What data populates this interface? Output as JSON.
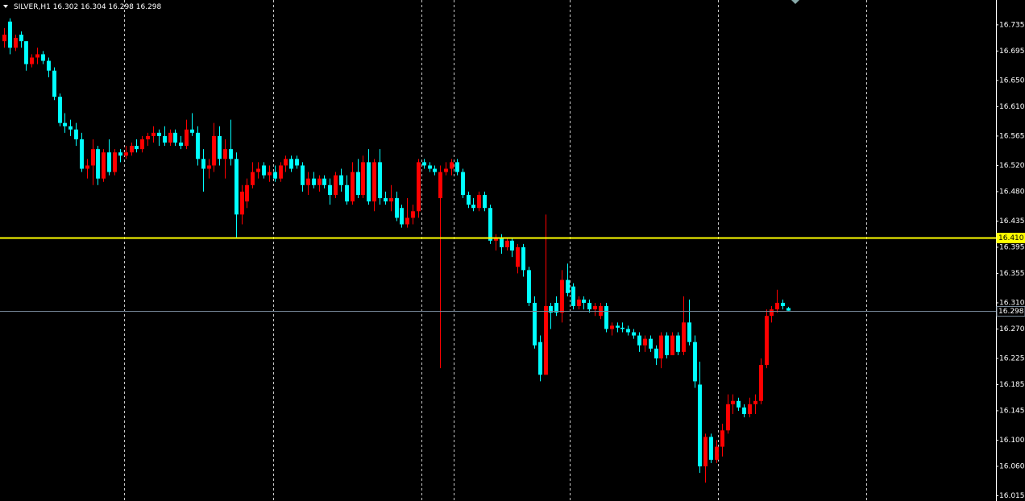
{
  "chart_data": {
    "type": "candlestick",
    "title": "SILVER,H1  16.302 16.304 16.298 16.298",
    "up_color": "#ff0000",
    "down_color": "#00ffff",
    "ylim": [
      16.007,
      16.773
    ],
    "yticks": [
      16.735,
      16.695,
      {
        "value": 16.65,
        "label": "16.650"
      },
      {
        "value": 16.61,
        "label": "16.610"
      },
      16.565,
      {
        "value": 16.52,
        "label": "16.520"
      },
      {
        "value": 16.48,
        "label": "16.480"
      },
      16.435,
      16.395,
      16.355,
      {
        "value": 16.31,
        "label": "16.310"
      },
      {
        "value": 16.27,
        "label": "16.270"
      },
      16.225,
      16.185,
      16.145,
      {
        "value": 16.1,
        "label": "16.100"
      },
      {
        "value": 16.06,
        "label": "16.060"
      },
      16.015
    ],
    "hlines": [
      {
        "value": 16.41,
        "label": "16.410",
        "color": "#ffff00"
      },
      {
        "value": 16.298,
        "label": "16.298",
        "color": "#778899"
      }
    ],
    "candles": [
      [
        16.71,
        16.73,
        16.7,
        16.72
      ],
      [
        16.74,
        16.745,
        16.69,
        16.7
      ],
      [
        16.7,
        16.72,
        16.695,
        16.715
      ],
      [
        16.72,
        16.725,
        16.7,
        16.71
      ],
      [
        16.71,
        16.71,
        16.665,
        16.675
      ],
      [
        16.675,
        16.69,
        16.67,
        16.685
      ],
      [
        16.685,
        16.7,
        16.675,
        16.69
      ],
      [
        16.69,
        16.695,
        16.675,
        16.68
      ],
      [
        16.68,
        16.685,
        16.655,
        16.665
      ],
      [
        16.665,
        16.67,
        16.62,
        16.625
      ],
      [
        16.625,
        16.63,
        16.58,
        16.585
      ],
      [
        16.585,
        16.6,
        16.57,
        16.58
      ],
      [
        16.58,
        16.59,
        16.565,
        16.575
      ],
      [
        16.575,
        16.585,
        16.55,
        16.56
      ],
      [
        16.56,
        16.57,
        16.51,
        16.515
      ],
      [
        16.515,
        16.53,
        16.5,
        16.52
      ],
      [
        16.52,
        16.56,
        16.49,
        16.545
      ],
      [
        16.545,
        16.55,
        16.49,
        16.5
      ],
      [
        16.5,
        16.545,
        16.495,
        16.54
      ],
      [
        16.54,
        16.56,
        16.505,
        16.51
      ],
      [
        16.51,
        16.545,
        16.505,
        16.54
      ],
      [
        16.54,
        16.545,
        16.525,
        16.535
      ],
      [
        16.535,
        16.55,
        16.53,
        16.54
      ],
      [
        16.54,
        16.555,
        16.535,
        16.55
      ],
      [
        16.55,
        16.56,
        16.54,
        16.545
      ],
      [
        16.545,
        16.565,
        16.54,
        16.56
      ],
      [
        16.56,
        16.57,
        16.55,
        16.565
      ],
      [
        16.565,
        16.58,
        16.555,
        16.57
      ],
      [
        16.57,
        16.575,
        16.55,
        16.565
      ],
      [
        16.565,
        16.58,
        16.55,
        16.555
      ],
      [
        16.555,
        16.575,
        16.55,
        16.57
      ],
      [
        16.57,
        16.575,
        16.55,
        16.555
      ],
      [
        16.555,
        16.565,
        16.545,
        16.55
      ],
      [
        16.55,
        16.59,
        16.545,
        16.575
      ],
      [
        16.575,
        16.6,
        16.565,
        16.57
      ],
      [
        16.57,
        16.58,
        16.52,
        16.53
      ],
      [
        16.53,
        16.545,
        16.48,
        16.515
      ],
      [
        16.515,
        16.53,
        16.5,
        16.52
      ],
      [
        16.52,
        16.585,
        16.51,
        16.565
      ],
      [
        16.565,
        16.58,
        16.52,
        16.53
      ],
      [
        16.53,
        16.56,
        16.5,
        16.545
      ],
      [
        16.545,
        16.59,
        16.52,
        16.53
      ],
      [
        16.53,
        16.54,
        16.41,
        16.445
      ],
      [
        16.445,
        16.49,
        16.43,
        16.48
      ],
      [
        16.465,
        16.5,
        16.455,
        16.49
      ],
      [
        16.49,
        16.525,
        16.485,
        16.51
      ],
      [
        16.51,
        16.525,
        16.5,
        16.515
      ],
      [
        16.52,
        16.525,
        16.5,
        16.505
      ],
      [
        16.505,
        16.52,
        16.495,
        16.51
      ],
      [
        16.51,
        16.52,
        16.495,
        16.5
      ],
      [
        16.5,
        16.525,
        16.495,
        16.52
      ],
      [
        16.52,
        16.535,
        16.51,
        16.53
      ],
      [
        16.53,
        16.535,
        16.51,
        16.515
      ],
      [
        16.53,
        16.535,
        16.515,
        16.52
      ],
      [
        16.52,
        16.525,
        16.48,
        16.49
      ],
      [
        16.49,
        16.51,
        16.475,
        16.5
      ],
      [
        16.5,
        16.51,
        16.485,
        16.49
      ],
      [
        16.49,
        16.505,
        16.48,
        16.5
      ],
      [
        16.5,
        16.505,
        16.485,
        16.49
      ],
      [
        16.49,
        16.5,
        16.46,
        16.475
      ],
      [
        16.475,
        16.51,
        16.47,
        16.505
      ],
      [
        16.505,
        16.515,
        16.48,
        16.49
      ],
      [
        16.49,
        16.505,
        16.46,
        16.465
      ],
      [
        16.465,
        16.525,
        16.46,
        16.51
      ],
      [
        16.51,
        16.53,
        16.47,
        16.475
      ],
      [
        16.475,
        16.535,
        16.47,
        16.525
      ],
      [
        16.525,
        16.545,
        16.46,
        16.465
      ],
      [
        16.465,
        16.53,
        16.45,
        16.525
      ],
      [
        16.525,
        16.545,
        16.46,
        16.47
      ],
      [
        16.47,
        16.48,
        16.46,
        16.465
      ],
      [
        16.465,
        16.49,
        16.45,
        16.47
      ],
      [
        16.47,
        16.48,
        16.435,
        16.44
      ],
      [
        16.455,
        16.46,
        16.425,
        16.43
      ],
      [
        16.43,
        16.47,
        16.425,
        16.44
      ],
      [
        16.44,
        16.46,
        16.43,
        16.45
      ],
      [
        16.45,
        16.53,
        16.44,
        16.525
      ],
      [
        16.525,
        16.53,
        16.515,
        16.52
      ],
      [
        16.52,
        16.525,
        16.51,
        16.515
      ],
      [
        16.515,
        16.52,
        16.505,
        16.51
      ],
      [
        16.47,
        16.52,
        16.21,
        16.51
      ],
      [
        16.51,
        16.525,
        16.505,
        16.515
      ],
      [
        16.515,
        16.53,
        16.505,
        16.525
      ],
      [
        16.525,
        16.53,
        16.505,
        16.51
      ],
      [
        16.51,
        16.515,
        16.47,
        16.475
      ],
      [
        16.475,
        16.48,
        16.455,
        16.46
      ],
      [
        16.46,
        16.47,
        16.45,
        16.455
      ],
      [
        16.455,
        16.48,
        16.45,
        16.475
      ],
      [
        16.475,
        16.48,
        16.45,
        16.455
      ],
      [
        16.455,
        16.46,
        16.4,
        16.405
      ],
      [
        16.405,
        16.415,
        16.39,
        16.41
      ],
      [
        16.41,
        16.415,
        16.385,
        16.395
      ],
      [
        16.395,
        16.41,
        16.39,
        16.405
      ],
      [
        16.405,
        16.41,
        16.38,
        16.39
      ],
      [
        16.365,
        16.4,
        16.355,
        16.395
      ],
      [
        16.395,
        16.4,
        16.35,
        16.36
      ],
      [
        16.36,
        16.365,
        16.305,
        16.31
      ],
      [
        16.31,
        16.32,
        16.24,
        16.245
      ],
      [
        16.25,
        16.26,
        16.19,
        16.2
      ],
      [
        16.2,
        16.445,
        16.2,
        16.305
      ],
      [
        16.305,
        16.31,
        16.27,
        16.295
      ],
      [
        16.31,
        16.32,
        16.29,
        16.295
      ],
      [
        16.295,
        16.36,
        16.28,
        16.345
      ],
      [
        16.345,
        16.37,
        16.32,
        16.325
      ],
      [
        16.335,
        16.34,
        16.3,
        16.305
      ],
      [
        16.305,
        16.32,
        16.3,
        16.315
      ],
      [
        16.315,
        16.32,
        16.3,
        16.31
      ],
      [
        16.31,
        16.315,
        16.295,
        16.3
      ],
      [
        16.3,
        16.31,
        16.29,
        16.305
      ],
      [
        16.29,
        16.31,
        16.285,
        16.305
      ],
      [
        16.305,
        16.31,
        16.265,
        16.27
      ],
      [
        16.27,
        16.28,
        16.26,
        16.275
      ],
      [
        16.275,
        16.28,
        16.265,
        16.272
      ],
      [
        16.272,
        16.28,
        16.265,
        16.27
      ],
      [
        16.27,
        16.275,
        16.26,
        16.265
      ],
      [
        16.265,
        16.27,
        16.255,
        16.26
      ],
      [
        16.26,
        16.265,
        16.235,
        16.245
      ],
      [
        16.245,
        16.26,
        16.235,
        16.255
      ],
      [
        16.255,
        16.26,
        16.235,
        16.24
      ],
      [
        16.24,
        16.245,
        16.215,
        16.225
      ],
      [
        16.225,
        16.265,
        16.21,
        16.26
      ],
      [
        16.26,
        16.265,
        16.225,
        16.23
      ],
      [
        16.23,
        16.265,
        16.23,
        16.26
      ],
      [
        16.26,
        16.265,
        16.23,
        16.235
      ],
      [
        16.235,
        16.32,
        16.23,
        16.28
      ],
      [
        16.28,
        16.315,
        16.245,
        16.25
      ],
      [
        16.25,
        16.26,
        16.18,
        16.19
      ],
      [
        16.185,
        16.22,
        16.05,
        16.06
      ],
      [
        16.06,
        16.11,
        16.035,
        16.105
      ],
      [
        16.105,
        16.11,
        16.065,
        16.07
      ],
      [
        16.07,
        16.1,
        16.065,
        16.09
      ],
      [
        16.09,
        16.125,
        16.075,
        16.115
      ],
      [
        16.115,
        16.17,
        16.11,
        16.155
      ],
      [
        16.155,
        16.17,
        16.14,
        16.16
      ],
      [
        16.16,
        16.165,
        16.145,
        16.15
      ],
      [
        16.15,
        16.155,
        16.135,
        16.14
      ],
      [
        16.14,
        16.165,
        16.135,
        16.155
      ],
      [
        16.155,
        16.17,
        16.14,
        16.16
      ],
      [
        16.16,
        16.225,
        16.155,
        16.215
      ],
      [
        16.215,
        16.3,
        16.21,
        16.29
      ],
      [
        16.29,
        16.305,
        16.28,
        16.3
      ],
      [
        16.3,
        16.33,
        16.295,
        16.31
      ],
      [
        16.31,
        16.315,
        16.3,
        16.305
      ],
      [
        16.302,
        16.304,
        16.298,
        16.298
      ]
    ]
  }
}
